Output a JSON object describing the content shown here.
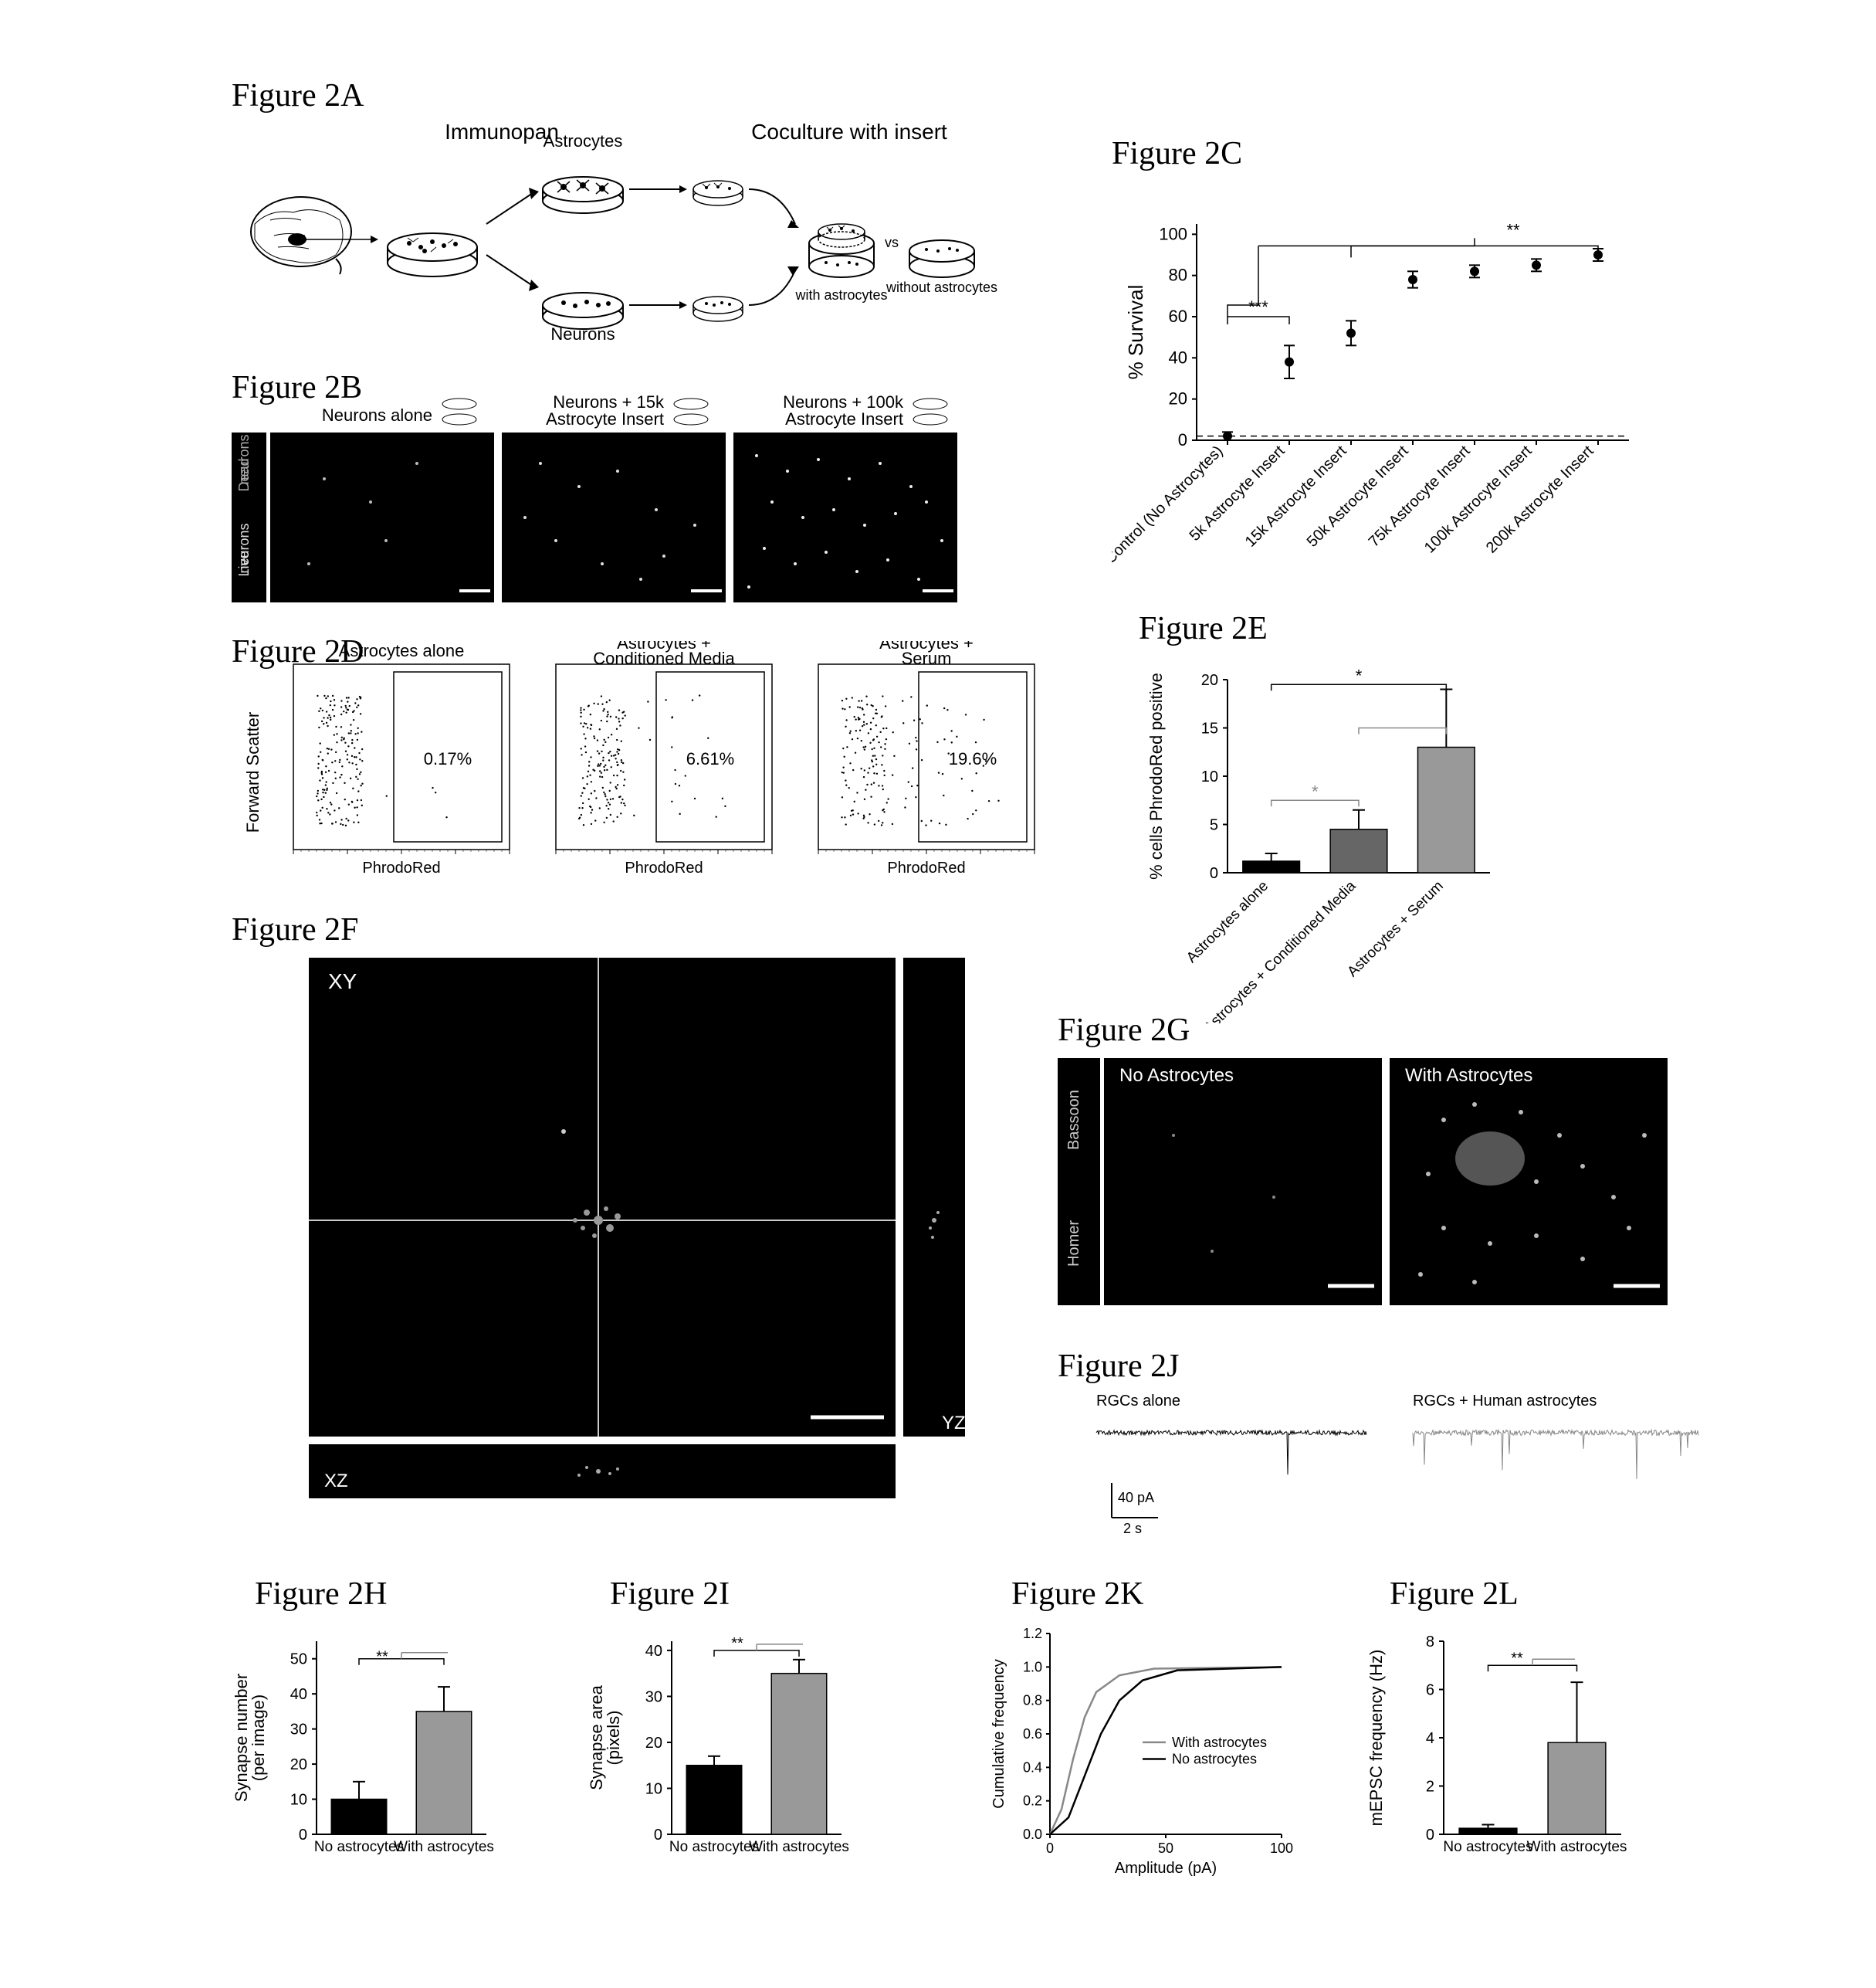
{
  "panelA": {
    "label": "Figure 2A",
    "sub1": "Immunopan",
    "sub2": "Coculture with insert",
    "dish1": "Astrocytes",
    "dish2": "Neurons",
    "cap1": "with\nastrocytes",
    "cap2": "without\nastrocytes",
    "vs": "vs"
  },
  "panelB": {
    "label": "Figure 2B",
    "col1": "Neurons alone",
    "col2": "Neurons + 15k\nAstrocyte Insert",
    "col3": "Neurons + 100k\nAstrocyte Insert",
    "row1": "Dead\nneurons",
    "row2": "Live\nneurons"
  },
  "panelC": {
    "label": "Figure 2C",
    "ylabel": "% Survival",
    "sig1": "***",
    "sig2": "**",
    "yticks": [
      0,
      20,
      40,
      60,
      80,
      100
    ],
    "ylim": [
      0,
      105
    ],
    "categories": [
      "Control (No Astrocytes)",
      "5k Astrocyte Insert",
      "15k Astrocyte Insert",
      "50k Astrocyte Insert",
      "75k Astrocyte Insert",
      "100k Astrocyte Insert",
      "200k Astrocyte Insert"
    ],
    "values": [
      2,
      38,
      52,
      78,
      82,
      85,
      90
    ],
    "errors": [
      2,
      8,
      6,
      4,
      3,
      3,
      3
    ],
    "colors": [
      "#000000",
      "#000000",
      "#000000",
      "#000000",
      "#000000",
      "#000000",
      "#000000"
    ]
  },
  "panelD": {
    "label": "Figure 2D",
    "ylabel": "Forward Scatter",
    "xlabel": "PhrodoRed",
    "col1": "Astrocytes alone",
    "col2": "Astrocytes +\nConditioned Media",
    "col3": "Astrocytes +\nSerum",
    "pct1": "0.17%",
    "pct2": "6.61%",
    "pct3": "19.6%"
  },
  "panelE": {
    "label": "Figure 2E",
    "ylabel": "% cells PhrodoRed positive",
    "sig": "*",
    "yticks": [
      0,
      5,
      10,
      15,
      20
    ],
    "ylim": [
      0,
      20
    ],
    "categories": [
      "Astrocytes alone",
      "Astrocytes +\nConditioned Media",
      "Astrocytes +\nSerum"
    ],
    "values": [
      1.2,
      4.5,
      13
    ],
    "errors": [
      0.8,
      2,
      6
    ],
    "colors": [
      "#000000",
      "#666666",
      "#999999"
    ]
  },
  "panelF": {
    "label": "Figure 2F",
    "xy": "XY",
    "xz": "XZ",
    "yz": "YZ"
  },
  "panelG": {
    "label": "Figure 2G",
    "col1": "No Astrocytes",
    "col2": "With Astrocytes",
    "row1": "Bassoon",
    "row2": "Homer"
  },
  "panelH": {
    "label": "Figure 2H",
    "ylabel": "Synapse number\n(per image)",
    "sig": "**",
    "yticks": [
      0,
      10,
      20,
      30,
      40,
      50
    ],
    "ylim": [
      0,
      55
    ],
    "categories": [
      "No astrocytes",
      "With astrocytes"
    ],
    "values": [
      10,
      35
    ],
    "errors": [
      5,
      7
    ],
    "colors": [
      "#000000",
      "#999999"
    ]
  },
  "panelI": {
    "label": "Figure 2I",
    "ylabel": "Synapse area\n(pixels)",
    "sig": "**",
    "yticks": [
      0,
      10,
      20,
      30,
      40
    ],
    "ylim": [
      0,
      42
    ],
    "categories": [
      "No astrocytes",
      "With astrocytes"
    ],
    "values": [
      15,
      35
    ],
    "errors": [
      2,
      3
    ],
    "colors": [
      "#000000",
      "#999999"
    ]
  },
  "panelJ": {
    "label": "Figure 2J",
    "col1": "RGCs alone",
    "col2": "RGCs + Human astrocytes",
    "scale_y": "40 pA",
    "scale_x": "2 s",
    "trace1_color": "#000000",
    "trace2_color": "#888888"
  },
  "panelK": {
    "label": "Figure 2K",
    "ylabel": "Cumulative frequency",
    "xlabel": "Amplitude (pA)",
    "yticks": [
      "0.0",
      "0.2",
      "0.4",
      "0.6",
      "0.8",
      "1.0",
      "1.2"
    ],
    "ylim": [
      0,
      1.2
    ],
    "xticks": [
      0,
      50,
      100
    ],
    "xlim": [
      0,
      100
    ],
    "legend1": "With astrocytes",
    "legend2": "No astrocytes",
    "line1_color": "#888888",
    "line2_color": "#000000"
  },
  "panelL": {
    "label": "Figure 2L",
    "ylabel": "mEPSC frequency (Hz)",
    "sig": "**",
    "yticks": [
      0,
      2,
      4,
      6,
      8
    ],
    "ylim": [
      0,
      8
    ],
    "categories": [
      "No astrocytes",
      "With astrocytes"
    ],
    "values": [
      0.25,
      3.8
    ],
    "errors": [
      0.15,
      2.5
    ],
    "colors": [
      "#000000",
      "#999999"
    ]
  }
}
